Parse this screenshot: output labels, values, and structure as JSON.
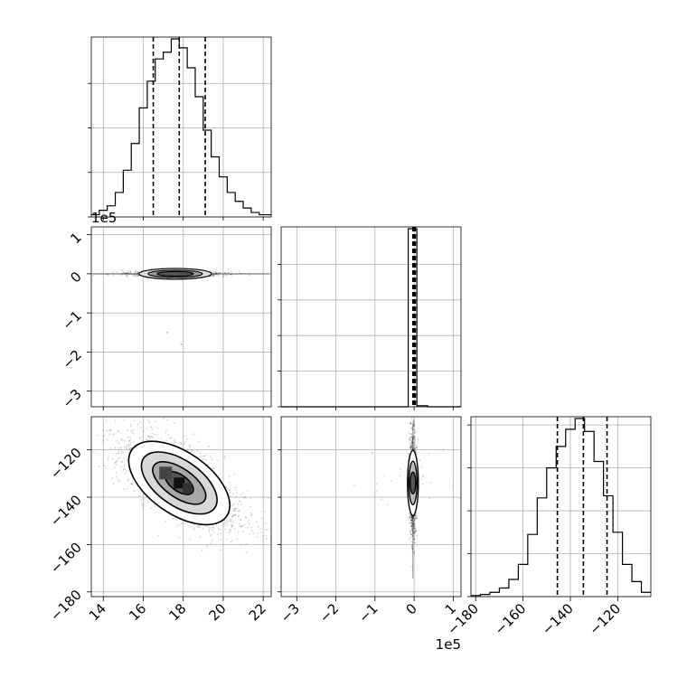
{
  "chart_data": {
    "type": "corner",
    "parameters": [
      {
        "offset_text": "",
        "range": [
          13.4,
          22.4
        ]
      },
      {
        "offset_text": "1e5",
        "range": [
          -3.4,
          1.2
        ]
      },
      {
        "offset_text": "",
        "range": [
          -182,
          -106
        ]
      }
    ],
    "grid": true,
    "histograms": [
      {
        "parameter": 0,
        "bin_edges": [
          13.4,
          13.8,
          14.2,
          14.6,
          15.0,
          15.4,
          15.8,
          16.2,
          16.6,
          17.0,
          17.4,
          17.8,
          18.2,
          18.6,
          19.0,
          19.4,
          19.8,
          20.2,
          20.6,
          21.0,
          21.4,
          21.8,
          22.4
        ],
        "counts": [
          1,
          3,
          5,
          11,
          21,
          33,
          49,
          61,
          71,
          74,
          80,
          76,
          67,
          54,
          39,
          27,
          18,
          11,
          7,
          4,
          2,
          1
        ],
        "quantiles": [
          16.5,
          17.8,
          19.1
        ],
        "ytick_values": [
          0,
          20,
          40,
          60
        ]
      },
      {
        "parameter": 1,
        "bin_edges": [
          -3.4,
          -3.2,
          -3.0,
          -2.8,
          -2.6,
          -2.4,
          -2.2,
          -2.0,
          -1.8,
          -1.6,
          -1.4,
          -1.2,
          -1.0,
          -0.8,
          -0.6,
          -0.4,
          -0.2,
          -0.15,
          0.07,
          0.35,
          0.6,
          0.8,
          1.0,
          1.2
        ],
        "counts": [
          0,
          0,
          0,
          0,
          0,
          0,
          0,
          0,
          0,
          0,
          0,
          0,
          0,
          0,
          0,
          0,
          0,
          100,
          0.6,
          0,
          0,
          0,
          0
        ],
        "quantiles": [
          -0.03,
          0.0,
          0.03
        ],
        "ytick_values": [
          0,
          20,
          40,
          60,
          80
        ]
      },
      {
        "parameter": 2,
        "bin_edges": [
          -182,
          -178,
          -174,
          -170,
          -166,
          -162,
          -158,
          -154,
          -150,
          -146,
          -142,
          -138,
          -134,
          -130,
          -126,
          -122,
          -118,
          -114,
          -110,
          -106
        ],
        "counts": [
          0.5,
          1,
          2,
          4,
          8,
          15,
          29,
          46,
          60,
          70,
          78,
          83,
          77,
          63,
          47,
          30,
          15,
          7,
          2
        ],
        "quantiles": [
          -145.5,
          -134.5,
          -124.5
        ],
        "ytick_values": [
          0,
          20,
          40,
          60,
          80
        ]
      }
    ],
    "scatter_panels": [
      {
        "x_parameter": 0,
        "y_parameter": 1,
        "center": [
          17.6,
          0.0
        ],
        "correlation": 0.0
      },
      {
        "x_parameter": 0,
        "y_parameter": 2,
        "center": [
          17.8,
          -134.0
        ],
        "correlation": -0.65
      },
      {
        "x_parameter": 1,
        "y_parameter": 2,
        "center": [
          -0.03,
          -134.0
        ],
        "correlation": 0.0
      }
    ],
    "axis_ticks": {
      "x_param0": [
        "14",
        "16",
        "18",
        "20",
        "22"
      ],
      "x_param1": [
        "−3",
        "−2",
        "−1",
        "0",
        "1"
      ],
      "x_param2": [
        "−180",
        "−160",
        "−140",
        "−120"
      ],
      "y_param1": [
        "1",
        "0",
        "−1",
        "−2",
        "−3"
      ],
      "y_param2": [
        "−120",
        "−140",
        "−160",
        "−180"
      ]
    },
    "tick_values": {
      "x_param0": [
        14,
        16,
        18,
        20,
        22
      ],
      "x_param1": [
        -3,
        -2,
        -1,
        0,
        1
      ],
      "x_param2": [
        -180,
        -160,
        -140,
        -120
      ],
      "y_param1": [
        1,
        0,
        -1,
        -2,
        -3
      ],
      "y_param2": [
        -120,
        -140,
        -160,
        -180
      ]
    }
  }
}
